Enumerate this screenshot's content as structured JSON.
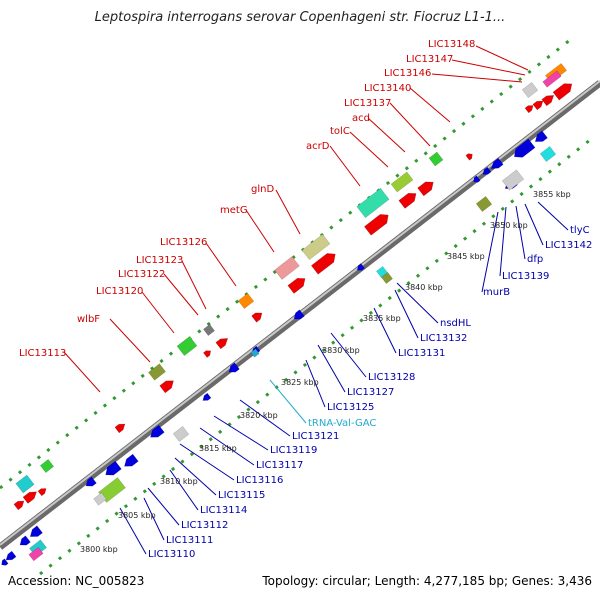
{
  "title": "Leptospira interrogans serovar Copenhageni str. Fiocruz L1-1...",
  "footer": {
    "accession": "Accession: NC_005823",
    "summary": "Topology: circular; Length: 4,277,185 bp; Genes: 3,436"
  },
  "colors": {
    "forward_label": "#cc0000",
    "reverse_label": "#0000aa",
    "trna_label": "#22aacc",
    "backbone": "#999999",
    "tick": "#339933"
  },
  "kbp_ticks": [
    "3800 kbp",
    "3805 kbp",
    "3810 kbp",
    "3815 kbp",
    "3820 kbp",
    "3825 kbp",
    "3830 kbp",
    "3835 kbp",
    "3840 kbp",
    "3845 kbp",
    "3850 kbp",
    "3855 kbp"
  ],
  "forward_labels": [
    "LIC13148",
    "LIC13147",
    "LIC13146",
    "LIC13140",
    "LIC13137",
    "acd",
    "tolC",
    "acrD",
    "glnD",
    "metG",
    "LIC13126",
    "LIC13123",
    "LIC13122",
    "LIC13120",
    "wlbF",
    "LIC13113"
  ],
  "reverse_labels": [
    "tlyC",
    "LIC13142",
    "dfp",
    "LIC13139",
    "murB",
    "nsdHL",
    "LIC13132",
    "LIC13131",
    "LIC13128",
    "LIC13127",
    "LIC13125",
    "LIC13121",
    "LIC13119",
    "LIC13117",
    "LIC13116",
    "LIC13115",
    "LIC13114",
    "LIC13112",
    "LIC13111",
    "LIC13110"
  ],
  "trna_labels": [
    "tRNA-Val-GAC"
  ]
}
